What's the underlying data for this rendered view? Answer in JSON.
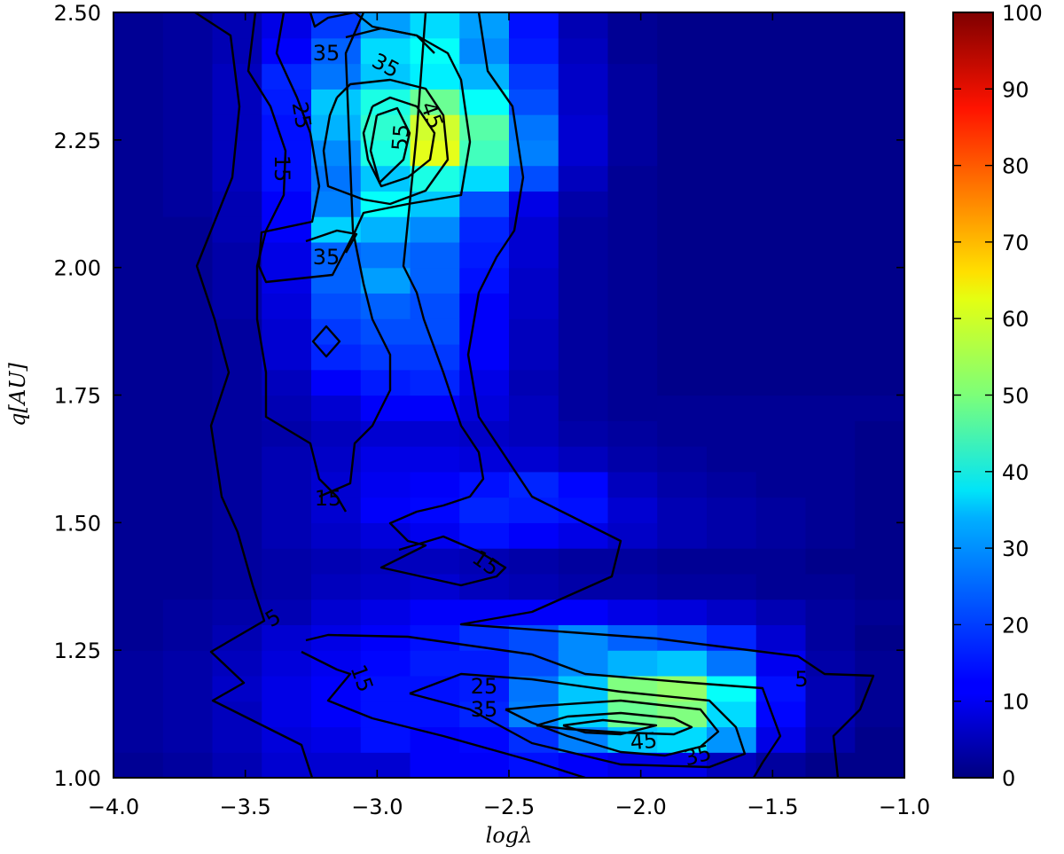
{
  "chart_data": {
    "type": "heatmap",
    "title": "",
    "xlabel": "logλ",
    "ylabel": "q[AU]",
    "xlim": [
      -4.0,
      -1.0
    ],
    "ylim": [
      1.0,
      2.5
    ],
    "x_ticks": [
      -4.0,
      -3.5,
      -3.0,
      -2.5,
      -2.0,
      -1.5,
      -1.0
    ],
    "x_tick_labels": [
      "−4.0",
      "−3.5",
      "−3.0",
      "−2.5",
      "−2.0",
      "−1.5",
      "−1.0"
    ],
    "y_ticks": [
      1.0,
      1.25,
      1.5,
      1.75,
      2.0,
      2.25,
      2.5
    ],
    "y_tick_labels": [
      "1.00",
      "1.25",
      "1.50",
      "1.75",
      "2.00",
      "2.25",
      "2.50"
    ],
    "colorbar": {
      "colormap": "jet",
      "range": [
        0,
        100
      ],
      "ticks": [
        0,
        10,
        20,
        30,
        40,
        50,
        60,
        70,
        80,
        90,
        100
      ],
      "tick_labels": [
        "0",
        "10",
        "20",
        "30",
        "40",
        "50",
        "60",
        "70",
        "80",
        "90",
        "100"
      ]
    },
    "grid": false,
    "x_bins": 16,
    "y_bins": 30,
    "z": [
      [
        2,
        3,
        5,
        8,
        8,
        8,
        12,
        12,
        14,
        12,
        10,
        10,
        6,
        3,
        1,
        1
      ],
      [
        3,
        4,
        6,
        9,
        10,
        14,
        12,
        13,
        17,
        25,
        32,
        34,
        27,
        10,
        4,
        1
      ],
      [
        3,
        4,
        6,
        10,
        12,
        14,
        14,
        16,
        25,
        33,
        48,
        50,
        34,
        13,
        5,
        2
      ],
      [
        3,
        4,
        7,
        10,
        12,
        14,
        14,
        15,
        24,
        32,
        50,
        52,
        38,
        14,
        5,
        2
      ],
      [
        3,
        4,
        6,
        9,
        11,
        13,
        15,
        15,
        20,
        26,
        30,
        32,
        24,
        11,
        4,
        2
      ],
      [
        2,
        3,
        5,
        8,
        10,
        12,
        14,
        17,
        20,
        26,
        22,
        20,
        16,
        8,
        3,
        1
      ],
      [
        2,
        3,
        4,
        5,
        8,
        10,
        12,
        12,
        12,
        12,
        10,
        9,
        7,
        5,
        3,
        2
      ],
      [
        2,
        2,
        3,
        4,
        6,
        7,
        8,
        6,
        5,
        4,
        4,
        3,
        3,
        2,
        2,
        1
      ],
      [
        2,
        2,
        3,
        4,
        5,
        6,
        6,
        5,
        4,
        3,
        3,
        2,
        2,
        2,
        1,
        1
      ],
      [
        2,
        2,
        3,
        5,
        7,
        9,
        11,
        14,
        12,
        10,
        7,
        5,
        4,
        3,
        2,
        1
      ],
      [
        2,
        2,
        3,
        5,
        8,
        12,
        13,
        16,
        15,
        14,
        8,
        5,
        4,
        3,
        2,
        1
      ],
      [
        2,
        2,
        3,
        5,
        8,
        11,
        12,
        14,
        16,
        13,
        6,
        4,
        3,
        2,
        2,
        1
      ],
      [
        2,
        2,
        3,
        5,
        7,
        10,
        10,
        9,
        8,
        6,
        4,
        3,
        2,
        2,
        2,
        1
      ],
      [
        2,
        2,
        3,
        4,
        6,
        8,
        8,
        7,
        6,
        4,
        3,
        2,
        2,
        2,
        2,
        1
      ],
      [
        2,
        2,
        3,
        5,
        8,
        12,
        12,
        9,
        6,
        3,
        2,
        2,
        2,
        2,
        2,
        2
      ],
      [
        2,
        2,
        3,
        6,
        12,
        15,
        16,
        10,
        5,
        3,
        2,
        1,
        1,
        1,
        1,
        1
      ],
      [
        2,
        2,
        3,
        8,
        16,
        18,
        18,
        12,
        6,
        3,
        2,
        1,
        1,
        1,
        1,
        1
      ],
      [
        2,
        2,
        3,
        8,
        18,
        20,
        20,
        12,
        6,
        3,
        2,
        1,
        1,
        1,
        1,
        1
      ],
      [
        2,
        2,
        4,
        9,
        20,
        22,
        20,
        12,
        7,
        3,
        2,
        1,
        1,
        1,
        1,
        1
      ],
      [
        2,
        2,
        4,
        10,
        22,
        28,
        22,
        14,
        7,
        3,
        2,
        1,
        1,
        1,
        1,
        1
      ],
      [
        2,
        2,
        4,
        10,
        22,
        24,
        22,
        15,
        8,
        3,
        2,
        1,
        1,
        1,
        1,
        1
      ],
      [
        2,
        2,
        5,
        12,
        33,
        30,
        26,
        16,
        8,
        3,
        2,
        1,
        1,
        1,
        1,
        1
      ],
      [
        2,
        3,
        5,
        12,
        25,
        38,
        32,
        20,
        10,
        4,
        2,
        1,
        1,
        1,
        1,
        1
      ],
      [
        2,
        3,
        6,
        14,
        24,
        32,
        40,
        34,
        20,
        6,
        2,
        1,
        1,
        1,
        1,
        1
      ],
      [
        2,
        3,
        6,
        14,
        26,
        40,
        60,
        44,
        25,
        8,
        3,
        1,
        1,
        1,
        1,
        1
      ],
      [
        2,
        3,
        6,
        14,
        30,
        42,
        58,
        46,
        24,
        8,
        3,
        1,
        1,
        1,
        1,
        1
      ],
      [
        2,
        3,
        6,
        15,
        32,
        40,
        48,
        38,
        20,
        7,
        3,
        1,
        1,
        1,
        1,
        1
      ],
      [
        2,
        3,
        6,
        16,
        24,
        32,
        36,
        30,
        18,
        7,
        3,
        1,
        1,
        1,
        1,
        1
      ],
      [
        2,
        3,
        5,
        12,
        22,
        34,
        38,
        26,
        15,
        6,
        2,
        1,
        1,
        1,
        1,
        1
      ],
      [
        2,
        3,
        5,
        10,
        18,
        28,
        34,
        28,
        14,
        5,
        2,
        1,
        1,
        1,
        1,
        1
      ]
    ],
    "contour_levels": [
      5,
      15,
      25,
      35,
      45,
      55
    ],
    "contour_labels": [
      "35",
      "35",
      "45",
      "25",
      "55",
      "15",
      "35",
      "15",
      "15",
      "5",
      "15",
      "25",
      "35",
      "5",
      "45",
      "35"
    ]
  }
}
